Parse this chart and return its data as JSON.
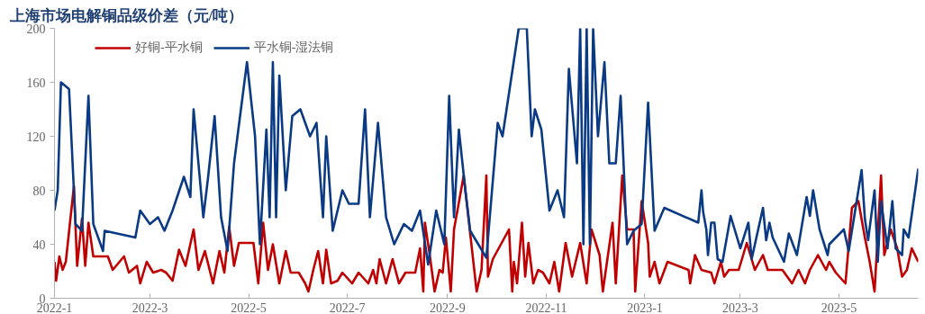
{
  "chart_data": {
    "type": "line",
    "title": "上海市场电解铜品级价差（元/吨）",
    "xlim": [
      "2022-01-01",
      "2023-06-19"
    ],
    "xticks": [
      {
        "value": "2022-01",
        "label": "2022-1"
      },
      {
        "value": "2022-03",
        "label": "2022-3"
      },
      {
        "value": "2022-05",
        "label": "2022-5"
      },
      {
        "value": "2022-07",
        "label": "2022-7"
      },
      {
        "value": "2022-09",
        "label": "2022-9"
      },
      {
        "value": "2022-11",
        "label": "2022-11"
      },
      {
        "value": "2023-01",
        "label": "2023-1"
      },
      {
        "value": "2023-03",
        "label": "2023-3"
      },
      {
        "value": "2023-05",
        "label": "2023-5"
      }
    ],
    "ylim": [
      0,
      200
    ],
    "yticks": [
      0,
      40,
      80,
      120,
      160,
      200
    ],
    "grid": false,
    "legend": "top left",
    "marker": "none",
    "line_style": "solid",
    "series": [
      {
        "name": "好铜-平水铜",
        "color": "#c00000",
        "x": [
          "2022-01-01",
          "2022-01-02",
          "2022-01-04",
          "2022-01-06",
          "2022-01-08",
          "2022-01-13",
          "2022-01-15",
          "2022-01-18",
          "2022-01-20",
          "2022-01-22",
          "2022-01-25",
          "2022-02-03",
          "2022-02-06",
          "2022-02-13",
          "2022-02-16",
          "2022-02-21",
          "2022-02-23",
          "2022-02-27",
          "2022-03-03",
          "2022-03-08",
          "2022-03-11",
          "2022-03-15",
          "2022-03-19",
          "2022-03-23",
          "2022-03-28",
          "2022-03-31",
          "2022-04-04",
          "2022-04-09",
          "2022-04-13",
          "2022-04-16",
          "2022-04-19",
          "2022-04-22",
          "2022-04-25",
          "2022-05-04",
          "2022-05-07",
          "2022-05-10",
          "2022-05-13",
          "2022-05-16",
          "2022-05-20",
          "2022-05-24",
          "2022-05-27",
          "2022-06-01",
          "2022-06-05",
          "2022-06-07",
          "2022-06-10",
          "2022-06-13",
          "2022-06-16",
          "2022-06-18",
          "2022-06-21",
          "2022-06-25",
          "2022-06-28",
          "2022-07-04",
          "2022-07-08",
          "2022-07-14",
          "2022-07-17",
          "2022-07-19",
          "2022-07-21",
          "2022-07-25",
          "2022-07-29",
          "2022-08-02",
          "2022-08-06",
          "2022-08-12",
          "2022-08-15",
          "2022-08-17",
          "2022-08-18",
          "2022-08-21",
          "2022-08-24",
          "2022-08-27",
          "2022-08-29",
          "2022-08-31",
          "2022-09-03",
          "2022-09-05",
          "2022-09-11",
          "2022-09-19",
          "2022-09-22",
          "2022-09-25",
          "2022-09-26",
          "2022-09-29",
          "2022-10-09",
          "2022-10-11",
          "2022-10-12",
          "2022-10-14",
          "2022-10-17",
          "2022-10-19",
          "2022-10-21",
          "2022-10-24",
          "2022-10-27",
          "2022-10-30",
          "2022-11-03",
          "2022-11-06",
          "2022-11-09",
          "2022-11-13",
          "2022-11-17",
          "2022-11-22",
          "2022-11-26",
          "2022-11-29",
          "2022-12-04",
          "2022-12-06",
          "2022-12-12",
          "2022-12-14",
          "2022-12-18",
          "2022-12-21",
          "2022-12-25",
          "2022-12-26",
          "2022-12-30",
          "2023-01-03",
          "2023-01-04",
          "2023-01-07",
          "2023-01-10",
          "2023-01-15",
          "2023-01-28",
          "2023-01-29",
          "2023-02-01",
          "2023-02-05",
          "2023-02-11",
          "2023-02-13",
          "2023-02-17",
          "2023-02-19",
          "2023-02-22",
          "2023-02-28",
          "2023-03-05",
          "2023-03-10",
          "2023-03-15",
          "2023-03-18",
          "2023-03-27",
          "2023-04-02",
          "2023-04-06",
          "2023-04-10",
          "2023-04-13",
          "2023-04-18",
          "2023-04-23",
          "2023-04-25",
          "2023-04-29",
          "2023-05-05",
          "2023-05-09",
          "2023-05-13",
          "2023-05-17",
          "2023-05-20",
          "2023-05-23",
          "2023-05-27",
          "2023-05-29",
          "2023-06-02",
          "2023-06-06",
          "2023-06-09",
          "2023-06-12",
          "2023-06-15",
          "2023-06-19"
        ],
        "values": [
          27,
          13,
          31,
          21,
          27,
          83,
          24,
          59,
          24,
          56,
          31,
          31,
          21,
          31,
          19,
          24,
          11,
          27,
          19,
          21,
          19,
          13,
          36,
          24,
          51,
          21,
          35,
          11,
          35,
          19,
          53,
          24,
          41,
          41,
          11,
          56,
          21,
          40,
          11,
          35,
          19,
          19,
          11,
          5,
          21,
          35,
          11,
          36,
          11,
          13,
          19,
          11,
          19,
          11,
          21,
          11,
          29,
          11,
          29,
          11,
          19,
          19,
          37,
          5,
          56,
          32,
          5,
          21,
          19,
          45,
          5,
          51,
          91,
          5,
          21,
          91,
          16,
          29,
          51,
          5,
          27,
          11,
          56,
          16,
          41,
          11,
          21,
          19,
          11,
          27,
          5,
          41,
          16,
          41,
          11,
          51,
          32,
          5,
          56,
          11,
          91,
          51,
          51,
          5,
          72,
          41,
          16,
          27,
          11,
          27,
          21,
          11,
          32,
          21,
          19,
          11,
          27,
          16,
          21,
          21,
          41,
          21,
          32,
          21,
          21,
          11,
          21,
          11,
          21,
          32,
          21,
          27,
          19,
          11,
          67,
          72,
          45,
          27,
          5,
          91,
          32,
          51,
          37,
          16,
          21,
          37,
          27
        ]
      },
      {
        "name": "平水铜-湿法铜",
        "color": "#0a3a84",
        "x": [
          "2022-01-01",
          "2022-01-03",
          "2022-01-05",
          "2022-01-10",
          "2022-01-14",
          "2022-01-18",
          "2022-01-22",
          "2022-01-25",
          "2022-01-31",
          "2022-02-01",
          "2022-02-20",
          "2022-02-23",
          "2022-03-01",
          "2022-03-06",
          "2022-03-10",
          "2022-03-15",
          "2022-03-22",
          "2022-03-26",
          "2022-03-28",
          "2022-04-03",
          "2022-04-06",
          "2022-04-10",
          "2022-04-14",
          "2022-04-18",
          "2022-04-22",
          "2022-04-30",
          "2022-05-05",
          "2022-05-08",
          "2022-05-12",
          "2022-05-14",
          "2022-05-16",
          "2022-05-18",
          "2022-05-20",
          "2022-05-24",
          "2022-05-28",
          "2022-06-02",
          "2022-06-08",
          "2022-06-12",
          "2022-06-16",
          "2022-06-18",
          "2022-06-22",
          "2022-06-28",
          "2022-07-02",
          "2022-07-08",
          "2022-07-12",
          "2022-07-15",
          "2022-07-20",
          "2022-07-25",
          "2022-07-30",
          "2022-08-05",
          "2022-08-10",
          "2022-08-15",
          "2022-08-20",
          "2022-08-25",
          "2022-08-30",
          "2022-09-02",
          "2022-09-05",
          "2022-09-08",
          "2022-09-12",
          "2022-09-15",
          "2022-09-25",
          "2022-10-02",
          "2022-10-05",
          "2022-10-15",
          "2022-10-20",
          "2022-10-23",
          "2022-10-25",
          "2022-10-29",
          "2022-11-03",
          "2022-11-08",
          "2022-11-12",
          "2022-11-15",
          "2022-11-20",
          "2022-11-22",
          "2022-11-24",
          "2022-11-26",
          "2022-11-28",
          "2022-11-30",
          "2022-12-03",
          "2022-12-07",
          "2022-12-10",
          "2022-12-14",
          "2022-12-17",
          "2022-12-21",
          "2022-12-25",
          "2022-12-30",
          "2023-01-03",
          "2023-01-07",
          "2023-01-13",
          "2023-02-03",
          "2023-02-05",
          "2023-02-06",
          "2023-02-08",
          "2023-02-09",
          "2023-02-11",
          "2023-02-13",
          "2023-02-15",
          "2023-02-18",
          "2023-02-23",
          "2023-03-01",
          "2023-03-06",
          "2023-03-08",
          "2023-03-15",
          "2023-03-17",
          "2023-03-19",
          "2023-03-21",
          "2023-03-28",
          "2023-03-31",
          "2023-04-05",
          "2023-04-11",
          "2023-04-13",
          "2023-04-15",
          "2023-04-19",
          "2023-04-24",
          "2023-04-25",
          "2023-05-04",
          "2023-05-07",
          "2023-05-15",
          "2023-05-17",
          "2023-05-19",
          "2023-05-23",
          "2023-05-25",
          "2023-05-27",
          "2023-05-31",
          "2023-06-03",
          "2023-06-05",
          "2023-06-09",
          "2023-06-10",
          "2023-06-13",
          "2023-06-19"
        ],
        "values": [
          65,
          80,
          160,
          155,
          55,
          50,
          150,
          55,
          35,
          50,
          45,
          65,
          55,
          60,
          50,
          65,
          90,
          75,
          140,
          60,
          90,
          135,
          60,
          35,
          100,
          175,
          120,
          40,
          125,
          60,
          175,
          60,
          165,
          80,
          135,
          140,
          120,
          130,
          60,
          120,
          50,
          80,
          70,
          70,
          140,
          60,
          130,
          60,
          40,
          55,
          50,
          65,
          25,
          65,
          40,
          150,
          60,
          125,
          80,
          50,
          30,
          130,
          120,
          200,
          200,
          120,
          140,
          125,
          65,
          80,
          60,
          170,
          100,
          200,
          40,
          200,
          40,
          200,
          120,
          175,
          100,
          100,
          150,
          40,
          50,
          55,
          145,
          50,
          67,
          56,
          80,
          64,
          51,
          32,
          56,
          56,
          29,
          27,
          61,
          37,
          56,
          29,
          67,
          43,
          56,
          45,
          27,
          48,
          32,
          75,
          61,
          80,
          51,
          32,
          40,
          51,
          35,
          95,
          59,
          43,
          80,
          27,
          72,
          37,
          72,
          37,
          32,
          51,
          45,
          96
        ]
      }
    ]
  }
}
